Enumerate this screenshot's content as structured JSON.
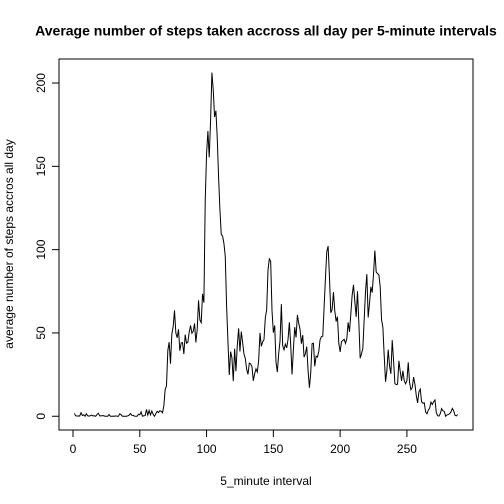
{
  "chart_data": {
    "type": "line",
    "title": "Average number of steps taken accross all day per 5-minute intervals",
    "xlabel": "5_minute interval",
    "ylabel": "average number of steps accros all day",
    "color": "#000000",
    "xlim": [
      -10.48,
      299.48
    ],
    "ylim": [
      -8.25,
      214.42
    ],
    "xticks": [
      0,
      50,
      100,
      150,
      200,
      250
    ],
    "yticks": [
      0,
      50,
      100,
      150,
      200
    ],
    "x": [
      1,
      2,
      3,
      4,
      5,
      6,
      7,
      8,
      9,
      10,
      11,
      12,
      13,
      14,
      15,
      16,
      17,
      18,
      19,
      20,
      21,
      22,
      23,
      24,
      25,
      26,
      27,
      28,
      29,
      30,
      31,
      32,
      33,
      34,
      35,
      36,
      37,
      38,
      39,
      40,
      41,
      42,
      43,
      44,
      45,
      46,
      47,
      48,
      49,
      50,
      51,
      52,
      53,
      54,
      55,
      56,
      57,
      58,
      59,
      60,
      61,
      62,
      63,
      64,
      65,
      66,
      67,
      68,
      69,
      70,
      71,
      72,
      73,
      74,
      75,
      76,
      77,
      78,
      79,
      80,
      81,
      82,
      83,
      84,
      85,
      86,
      87,
      88,
      89,
      90,
      91,
      92,
      93,
      94,
      95,
      96,
      97,
      98,
      99,
      100,
      101,
      102,
      103,
      104,
      105,
      106,
      107,
      108,
      109,
      110,
      111,
      112,
      113,
      114,
      115,
      116,
      117,
      118,
      119,
      120,
      121,
      122,
      123,
      124,
      125,
      126,
      127,
      128,
      129,
      130,
      131,
      132,
      133,
      134,
      135,
      136,
      137,
      138,
      139,
      140,
      141,
      142,
      143,
      144,
      145,
      146,
      147,
      148,
      149,
      150,
      151,
      152,
      153,
      154,
      155,
      156,
      157,
      158,
      159,
      160,
      161,
      162,
      163,
      164,
      165,
      166,
      167,
      168,
      169,
      170,
      171,
      172,
      173,
      174,
      175,
      176,
      177,
      178,
      179,
      180,
      181,
      182,
      183,
      184,
      185,
      186,
      187,
      188,
      189,
      190,
      191,
      192,
      193,
      194,
      195,
      196,
      197,
      198,
      199,
      200,
      201,
      202,
      203,
      204,
      205,
      206,
      207,
      208,
      209,
      210,
      211,
      212,
      213,
      214,
      215,
      216,
      217,
      218,
      219,
      220,
      221,
      222,
      223,
      224,
      225,
      226,
      227,
      228,
      229,
      230,
      231,
      232,
      233,
      234,
      235,
      236,
      237,
      238,
      239,
      240,
      241,
      242,
      243,
      244,
      245,
      246,
      247,
      248,
      249,
      250,
      251,
      252,
      253,
      254,
      255,
      256,
      257,
      258,
      259,
      260,
      261,
      262,
      263,
      264,
      265,
      266,
      267,
      268,
      269,
      270,
      271,
      272,
      273,
      274,
      275,
      276,
      277,
      278,
      279,
      280,
      281,
      282,
      283,
      284,
      285,
      286,
      287,
      288
    ],
    "values": [
      1.7,
      0.3,
      0.1,
      0.2,
      0.1,
      2.1,
      0.5,
      0.9,
      0,
      1.5,
      0.3,
      0.1,
      0.3,
      0.7,
      0.2,
      0.3,
      0,
      1.1,
      1.8,
      0.2,
      0.2,
      0.4,
      0.3,
      0,
      0,
      0,
      1.1,
      0,
      0,
      0.1,
      0,
      0.2,
      0,
      0,
      1.5,
      0.9,
      0,
      0,
      0,
      0,
      0.2,
      0.6,
      1.6,
      0.6,
      0.5,
      0.1,
      0,
      0,
      1.2,
      0.9,
      2.6,
      0,
      0.3,
      0.4,
      4.1,
      0.7,
      3.5,
      0.8,
      3.1,
      1.1,
      0,
      1.6,
      3,
      2.2,
      3.3,
      3,
      2.1,
      6.1,
      16,
      18.3,
      39.5,
      44.5,
      31.5,
      49.3,
      53.8,
      63.5,
      50,
      47.1,
      52.2,
      39.3,
      44,
      44.2,
      37.4,
      49,
      43.8,
      44.4,
      50.5,
      54.5,
      49.9,
      51,
      55.7,
      44.3,
      52.3,
      69.5,
      57.8,
      56.2,
      73.4,
      68.2,
      129.4,
      157.5,
      171.2,
      155.4,
      177.3,
      206.2,
      195.9,
      179.6,
      183.4,
      167,
      143.5,
      124,
      109.1,
      108.1,
      103.7,
      96,
      66.2,
      45.2,
      24.8,
      38.8,
      35,
      21.1,
      40.6,
      27,
      42.4,
      52.7,
      38.9,
      50.8,
      44.3,
      37.4,
      34.7,
      28.3,
      25.1,
      31.9,
      31.4,
      29.7,
      21.3,
      25.5,
      28.4,
      26.5,
      33.4,
      50,
      42,
      44.6,
      46,
      59.2,
      63.9,
      87.7,
      94.8,
      92.8,
      63.4,
      50.2,
      54.5,
      32.4,
      26.5,
      37.7,
      45.1,
      67.3,
      42.3,
      39.9,
      43.3,
      41,
      46.2,
      56.4,
      42.8,
      25.1,
      40,
      53.5,
      47.3,
      60.8,
      55.8,
      52,
      43.6,
      48.7,
      35.5,
      37.5,
      41.8,
      27.5,
      17.1,
      26.1,
      43.6,
      43.8,
      30,
      36.1,
      35.5,
      38.8,
      46,
      47.8,
      48.1,
      65.3,
      82.9,
      98.7,
      102.1,
      84,
      62.1,
      64.1,
      74.5,
      63.2,
      56.9,
      59.8,
      43.9,
      38.6,
      44.7,
      45.5,
      46.2,
      43.7,
      46.6,
      56.3,
      50.7,
      61.2,
      72.7,
      78.9,
      68.9,
      59.7,
      75.1,
      56.5,
      34.8,
      37.5,
      40.7,
      58,
      74.7,
      85.3,
      59.3,
      67.8,
      77.7,
      74.2,
      85.3,
      99.5,
      86.6,
      85.6,
      84.9,
      77.8,
      58,
      53.4,
      36.3,
      20.7,
      27.4,
      40,
      30.2,
      25.5,
      45.7,
      33.5,
      19.6,
      19,
      19.3,
      33.3,
      26.8,
      21.2,
      27.3,
      21.3,
      19.5,
      21.3,
      32.3,
      20.2,
      15.9,
      17.2,
      23.5,
      19.2,
      12.5,
      8,
      14.7,
      16.3,
      8.7,
      7.8,
      8.1,
      2.6,
      1.5,
      3.7,
      4.8,
      8.5,
      7.1,
      8.7,
      9.8,
      2.2,
      0.3,
      0.1,
      1.6,
      4.6,
      3.3,
      2.8,
      0,
      0.8,
      1,
      1.6,
      2.6,
      4.7,
      3.3,
      0.6,
      0.2,
      1.1
    ]
  }
}
